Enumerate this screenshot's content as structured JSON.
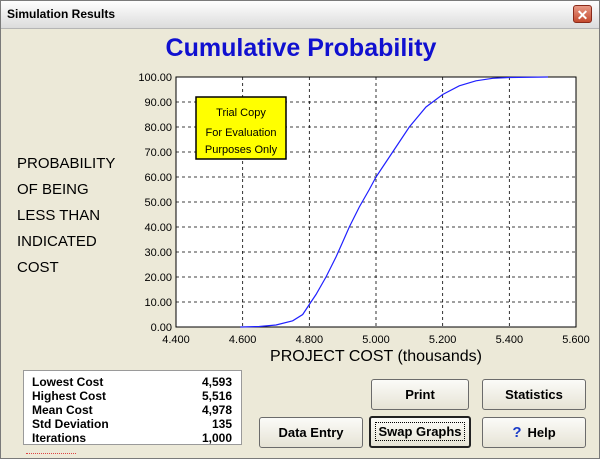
{
  "window": {
    "title": "Simulation Results",
    "close_label": "✕"
  },
  "chart_data": {
    "type": "line",
    "title": "Cumulative Probability",
    "xlabel": "PROJECT COST  (thousands)",
    "ylabel_lines": [
      "PROBABILITY",
      "OF BEING",
      "LESS THAN",
      "INDICATED",
      "COST"
    ],
    "xlim": [
      4.4,
      5.6
    ],
    "ylim": [
      0,
      100
    ],
    "grid": true,
    "x_ticks": [
      "4.400",
      "4.600",
      "4.800",
      "5.000",
      "5.200",
      "5.400",
      "5.600"
    ],
    "y_ticks": [
      "0.00",
      "10.00",
      "20.00",
      "30.00",
      "40.00",
      "50.00",
      "60.00",
      "70.00",
      "80.00",
      "90.00",
      "100.00"
    ],
    "series": [
      {
        "color": "#2020ff",
        "x": [
          4.593,
          4.65,
          4.7,
          4.75,
          4.78,
          4.8,
          4.82,
          4.85,
          4.88,
          4.9,
          4.92,
          4.95,
          4.98,
          5.0,
          5.03,
          5.06,
          5.1,
          5.15,
          5.2,
          5.25,
          5.3,
          5.35,
          5.4,
          5.516
        ],
        "y": [
          0.0,
          0.2,
          0.8,
          2.5,
          5.0,
          9.0,
          13.0,
          20.0,
          28.0,
          34.0,
          40.0,
          48.0,
          55.0,
          60.0,
          66.0,
          72.0,
          80.0,
          88.0,
          93.0,
          96.5,
          98.5,
          99.5,
          99.8,
          100.0
        ]
      }
    ]
  },
  "watermark": {
    "line1": "Trial Copy",
    "line2": "For Evaluation",
    "line3": "Purposes Only"
  },
  "stats": [
    {
      "label": "Lowest Cost",
      "value": "4,593"
    },
    {
      "label": "Highest Cost",
      "value": "5,516"
    },
    {
      "label": "Mean Cost",
      "value": "4,978"
    },
    {
      "label": "Std Deviation",
      "value": "135"
    },
    {
      "label": "Iterations",
      "value": "1,000"
    }
  ],
  "buttons": {
    "print": "Print",
    "statistics": "Statistics",
    "data_entry": "Data Entry",
    "swap_graphs": "Swap Graphs",
    "help": "Help",
    "help_icon": "?"
  },
  "colors": {
    "title": "#1010d0",
    "line": "#2020ff",
    "watermark_bg": "#ffff00"
  }
}
